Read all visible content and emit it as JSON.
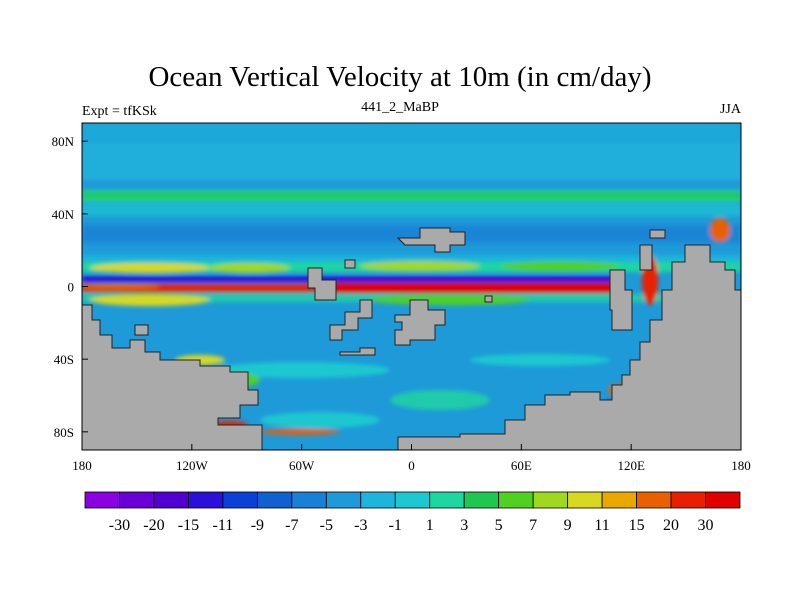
{
  "header": {
    "title": "Ocean Vertical Velocity at 10m (in cm/day)",
    "left_label": "Expt = tfKSk",
    "center_label": "441_2_MaBP",
    "right_label": "JJA"
  },
  "colors": {
    "land": "#aaaaaa",
    "background": "#ffffff",
    "axis": "#000000"
  },
  "chart_data": {
    "type": "heatmap",
    "title": "Ocean Vertical Velocity at 10m (in cm/day)",
    "subtitle": "441_2_MaBP",
    "units": "cm/day",
    "x_ticks": [
      "180",
      "120W",
      "60W",
      "0",
      "60E",
      "120E",
      "180"
    ],
    "y_ticks": [
      "80N",
      "40N",
      "0",
      "40S",
      "80S"
    ],
    "xlim": [
      -180,
      180
    ],
    "ylim": [
      -90,
      90
    ],
    "colorbar": {
      "labels": [
        "-30",
        "-20",
        "-15",
        "-11",
        "-9",
        "-7",
        "-5",
        "-3",
        "-1",
        "1",
        "3",
        "5",
        "7",
        "9",
        "11",
        "15",
        "20",
        "30"
      ],
      "colors": [
        "#8a00e0",
        "#6a00d8",
        "#5000d0",
        "#2a10d8",
        "#0a40d8",
        "#1060d0",
        "#1a80d6",
        "#1e9ad8",
        "#1eb4dc",
        "#1ec8d0",
        "#1ed6a0",
        "#1ec850",
        "#50d020",
        "#a0d820",
        "#d8d820",
        "#e8a800",
        "#e86000",
        "#e82000",
        "#e00000"
      ]
    }
  }
}
